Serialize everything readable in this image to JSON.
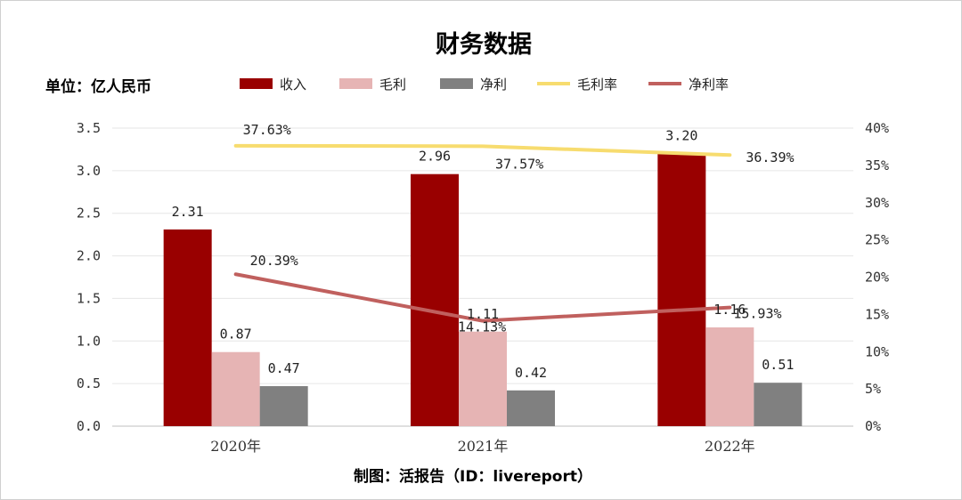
{
  "chart_data": {
    "type": "bar",
    "title": "财务数据",
    "unit_label": "单位：亿人民币",
    "source": "制图：活报告（ID：livereport）",
    "categories": [
      "2020年",
      "2021年",
      "2022年"
    ],
    "series": [
      {
        "name": "收入",
        "type": "bar",
        "axis": "left",
        "color": "#990000",
        "values": [
          2.31,
          2.96,
          3.2
        ],
        "labels": [
          "2.31",
          "2.96",
          "3.20"
        ]
      },
      {
        "name": "毛利",
        "type": "bar",
        "axis": "left",
        "color": "#e6b4b4",
        "values": [
          0.87,
          1.11,
          1.16
        ],
        "labels": [
          "0.87",
          "1.11",
          "1.16"
        ]
      },
      {
        "name": "净利",
        "type": "bar",
        "axis": "left",
        "color": "#808080",
        "values": [
          0.47,
          0.42,
          0.51
        ],
        "labels": [
          "0.47",
          "0.42",
          "0.51"
        ]
      },
      {
        "name": "毛利率",
        "type": "line",
        "axis": "right",
        "color": "#f7dc6f",
        "values": [
          37.63,
          37.57,
          36.39
        ],
        "labels": [
          "37.63%",
          "37.57%",
          "36.39%"
        ]
      },
      {
        "name": "净利率",
        "type": "line",
        "axis": "right",
        "color": "#c0605e",
        "values": [
          20.39,
          14.13,
          15.93
        ],
        "labels": [
          "20.39%",
          "14.13%",
          "15.93%"
        ]
      }
    ],
    "y_left": {
      "min": 0,
      "max": 3.5,
      "step": 0.5,
      "ticks": [
        "0.0",
        "0.5",
        "1.0",
        "1.5",
        "2.0",
        "2.5",
        "3.0",
        "3.5"
      ]
    },
    "y_right": {
      "min": 0,
      "max": 40,
      "step": 5,
      "ticks": [
        "0%",
        "5%",
        "10%",
        "15%",
        "20%",
        "25%",
        "30%",
        "35%",
        "40%"
      ]
    },
    "grid": true,
    "legend_position": "top"
  }
}
